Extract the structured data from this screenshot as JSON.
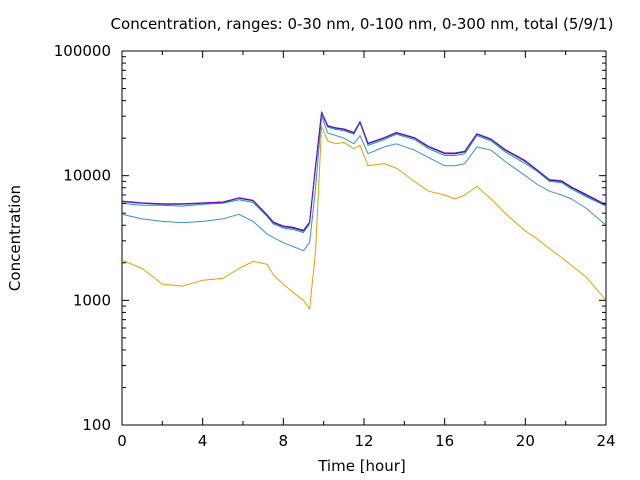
{
  "chart_data": {
    "type": "line",
    "title": "Concentration, ranges: 0-30 nm, 0-100 nm, 0-300 nm, total (5/9/1)",
    "xlabel": "Time [hour]",
    "ylabel": "Concentration",
    "x_ticks": [
      "0",
      "4",
      "8",
      "12",
      "16",
      "20",
      "24"
    ],
    "y_ticks": [
      "100",
      "1000",
      "10000",
      "100000"
    ],
    "xlim": [
      0,
      24
    ],
    "ylim": [
      100,
      100000
    ],
    "yscale": "log",
    "grid": false,
    "legend": "none",
    "x": [
      0,
      1,
      2,
      3,
      4,
      5,
      5.8,
      6.5,
      7.2,
      7.5,
      8,
      8.5,
      9,
      9.3,
      9.6,
      9.9,
      10.2,
      10.6,
      11,
      11.5,
      11.8,
      12.2,
      13,
      13.6,
      14.5,
      15.2,
      16,
      16.5,
      17,
      17.6,
      18.3,
      19,
      20,
      20.6,
      21.2,
      21.8,
      22.3,
      23,
      24
    ],
    "series": [
      {
        "color": "#3a8fd0",
        "values": [
          4900,
          4500,
          4300,
          4200,
          4300,
          4500,
          4900,
          4300,
          3400,
          3200,
          2900,
          2700,
          2500,
          2900,
          8000,
          30000,
          22000,
          21000,
          20000,
          18000,
          21000,
          15000,
          17000,
          18000,
          16000,
          14000,
          12000,
          12000,
          12500,
          17000,
          16000,
          13000,
          10000,
          8500,
          7500,
          7000,
          6500,
          5500,
          4000
        ]
      },
      {
        "color": "#e0a000",
        "values": [
          2100,
          1800,
          1350,
          1300,
          1450,
          1500,
          1800,
          2050,
          1950,
          1600,
          1350,
          1150,
          1000,
          850,
          2500,
          25000,
          19000,
          18000,
          18500,
          16500,
          17500,
          12000,
          12500,
          11500,
          9000,
          7500,
          7000,
          6500,
          7000,
          8200,
          6500,
          5000,
          3600,
          3100,
          2600,
          2200,
          1900,
          1550,
          1000
        ]
      },
      {
        "color": "#1e2fa0",
        "values": [
          6200,
          6000,
          5900,
          5900,
          6000,
          6100,
          6600,
          6300,
          4800,
          4200,
          3900,
          3800,
          3600,
          4200,
          12000,
          32000,
          25000,
          24000,
          23500,
          22000,
          27000,
          18000,
          20000,
          22000,
          20000,
          17000,
          15000,
          15000,
          15500,
          21500,
          19500,
          16000,
          13000,
          11000,
          9200,
          9000,
          8000,
          7000,
          5800
        ]
      },
      {
        "color": "#12a080",
        "values": [
          6000,
          5800,
          5800,
          5700,
          5900,
          6000,
          6400,
          6100,
          4700,
          4100,
          3800,
          3700,
          3500,
          4100,
          11500,
          31500,
          24500,
          23500,
          23000,
          21500,
          26500,
          17500,
          19500,
          21500,
          19500,
          16500,
          14500,
          14500,
          15000,
          21000,
          19000,
          15500,
          12500,
          10800,
          9000,
          8800,
          7800,
          6800,
          5700
        ]
      },
      {
        "color": "#7a00c8",
        "values": [
          6250,
          6050,
          5950,
          5950,
          6050,
          6150,
          6650,
          6350,
          4850,
          4250,
          3950,
          3850,
          3650,
          4250,
          12200,
          32500,
          25200,
          24200,
          23700,
          22200,
          27200,
          18200,
          20200,
          22200,
          20200,
          17200,
          15200,
          15200,
          15700,
          21700,
          19700,
          16200,
          13200,
          11100,
          9300,
          9100,
          8100,
          7100,
          5850
        ]
      }
    ]
  }
}
